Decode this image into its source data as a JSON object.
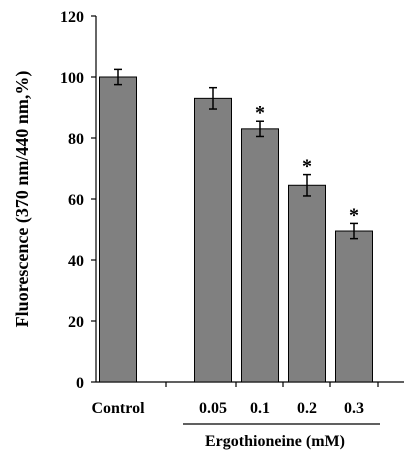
{
  "chart_data": {
    "type": "bar",
    "categories": [
      "Control",
      "0.05",
      "0.1",
      "0.2",
      "0.3"
    ],
    "values": [
      100,
      93,
      83,
      64.5,
      49.5
    ],
    "errors": [
      2.5,
      3.5,
      2.5,
      3.5,
      2.5
    ],
    "significant": [
      false,
      false,
      true,
      true,
      true
    ],
    "significance_marker": "*",
    "ylabel": "Fluorescence (370 nm/440 nm,%)",
    "xgroup_label": "Ergothioneine (mM)",
    "ylim": [
      0,
      120
    ],
    "yticks": [
      0,
      20,
      40,
      60,
      80,
      100,
      120
    ],
    "grid": false,
    "bar_color": "#808080",
    "bar_edge_color": "#000000"
  }
}
